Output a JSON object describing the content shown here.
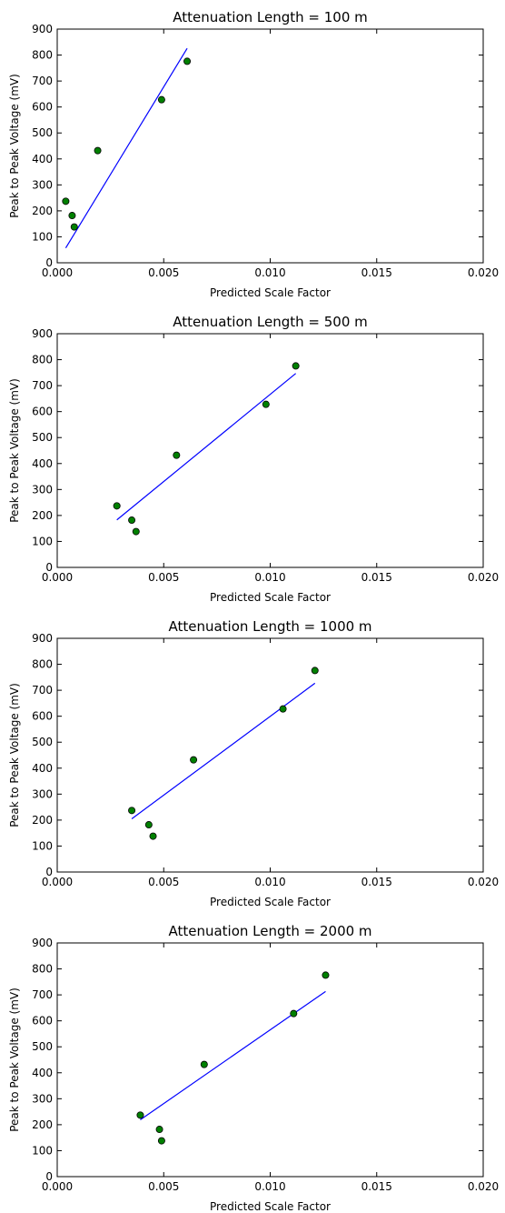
{
  "chart_data": [
    {
      "type": "scatter",
      "title": "Attenuation Length = 100 m",
      "xlabel": "Predicted Scale Factor",
      "ylabel": "Peak to Peak Voltage (mV)",
      "xlim": [
        0,
        0.02
      ],
      "ylim": [
        0,
        900
      ],
      "xticks": [
        "0.000",
        "0.005",
        "0.010",
        "0.015",
        "0.020"
      ],
      "yticks": [
        "0",
        "100",
        "200",
        "300",
        "400",
        "500",
        "600",
        "700",
        "800",
        "900"
      ],
      "grid": false,
      "points": [
        {
          "x": 0.0004,
          "y": 237
        },
        {
          "x": 0.0007,
          "y": 182
        },
        {
          "x": 0.0008,
          "y": 138
        },
        {
          "x": 0.0019,
          "y": 432
        },
        {
          "x": 0.0049,
          "y": 628
        },
        {
          "x": 0.0061,
          "y": 776
        }
      ],
      "fit_line": [
        {
          "x": 0.0004,
          "y": 57
        },
        {
          "x": 0.0061,
          "y": 826
        }
      ],
      "marker_color": "#008000",
      "line_color": "#0000ff"
    },
    {
      "type": "scatter",
      "title": "Attenuation Length = 500 m",
      "xlabel": "Predicted Scale Factor",
      "ylabel": "Peak to Peak Voltage (mV)",
      "xlim": [
        0,
        0.02
      ],
      "ylim": [
        0,
        900
      ],
      "xticks": [
        "0.000",
        "0.005",
        "0.010",
        "0.015",
        "0.020"
      ],
      "yticks": [
        "0",
        "100",
        "200",
        "300",
        "400",
        "500",
        "600",
        "700",
        "800",
        "900"
      ],
      "grid": false,
      "points": [
        {
          "x": 0.0028,
          "y": 237
        },
        {
          "x": 0.0035,
          "y": 182
        },
        {
          "x": 0.0037,
          "y": 138
        },
        {
          "x": 0.0056,
          "y": 432
        },
        {
          "x": 0.0098,
          "y": 628
        },
        {
          "x": 0.0112,
          "y": 776
        }
      ],
      "fit_line": [
        {
          "x": 0.0028,
          "y": 183
        },
        {
          "x": 0.0112,
          "y": 747
        }
      ],
      "marker_color": "#008000",
      "line_color": "#0000ff"
    },
    {
      "type": "scatter",
      "title": "Attenuation Length = 1000 m",
      "xlabel": "Predicted Scale Factor",
      "ylabel": "Peak to Peak Voltage (mV)",
      "xlim": [
        0,
        0.02
      ],
      "ylim": [
        0,
        900
      ],
      "xticks": [
        "0.000",
        "0.005",
        "0.010",
        "0.015",
        "0.020"
      ],
      "yticks": [
        "0",
        "100",
        "200",
        "300",
        "400",
        "500",
        "600",
        "700",
        "800",
        "900"
      ],
      "grid": false,
      "points": [
        {
          "x": 0.0035,
          "y": 237
        },
        {
          "x": 0.0043,
          "y": 182
        },
        {
          "x": 0.0045,
          "y": 138
        },
        {
          "x": 0.0064,
          "y": 432
        },
        {
          "x": 0.0106,
          "y": 628
        },
        {
          "x": 0.0121,
          "y": 776
        }
      ],
      "fit_line": [
        {
          "x": 0.0035,
          "y": 205
        },
        {
          "x": 0.0121,
          "y": 727
        }
      ],
      "marker_color": "#008000",
      "line_color": "#0000ff"
    },
    {
      "type": "scatter",
      "title": "Attenuation Length = 2000 m",
      "xlabel": "Predicted Scale Factor",
      "ylabel": "Peak to Peak Voltage (mV)",
      "xlim": [
        0,
        0.02
      ],
      "ylim": [
        0,
        900
      ],
      "xticks": [
        "0.000",
        "0.005",
        "0.010",
        "0.015",
        "0.020"
      ],
      "yticks": [
        "0",
        "100",
        "200",
        "300",
        "400",
        "500",
        "600",
        "700",
        "800",
        "900"
      ],
      "grid": false,
      "points": [
        {
          "x": 0.0039,
          "y": 237
        },
        {
          "x": 0.0048,
          "y": 182
        },
        {
          "x": 0.0049,
          "y": 138
        },
        {
          "x": 0.0069,
          "y": 432
        },
        {
          "x": 0.0111,
          "y": 628
        },
        {
          "x": 0.0126,
          "y": 776
        }
      ],
      "fit_line": [
        {
          "x": 0.0039,
          "y": 219
        },
        {
          "x": 0.0126,
          "y": 713
        }
      ],
      "marker_color": "#008000",
      "line_color": "#0000ff"
    }
  ]
}
